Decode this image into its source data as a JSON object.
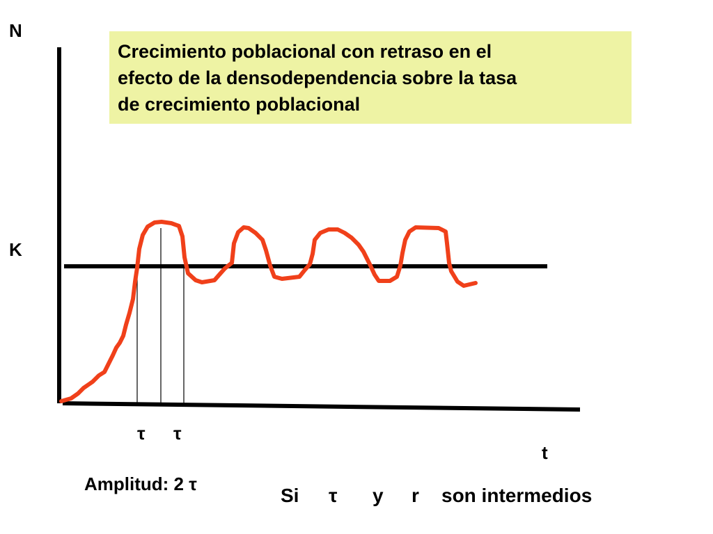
{
  "title_lines": [
    "Crecimiento poblacional con retraso en el",
    "efecto de la densodependencia sobre la tasa",
    "de crecimiento poblacional"
  ],
  "axes": {
    "y_label": "N",
    "x_label": "t",
    "k_label": "K"
  },
  "tau_ticks": [
    "τ",
    "τ"
  ],
  "amplitude_text": "Amplitud: 2 τ",
  "condition": {
    "prefix": "Si",
    "tau": "τ",
    "and": "y",
    "r": "r",
    "suffix": "son intermedios"
  },
  "colors": {
    "curve": "#f0401a",
    "axis": "#000000",
    "title_bg": "#eef3a4"
  }
}
